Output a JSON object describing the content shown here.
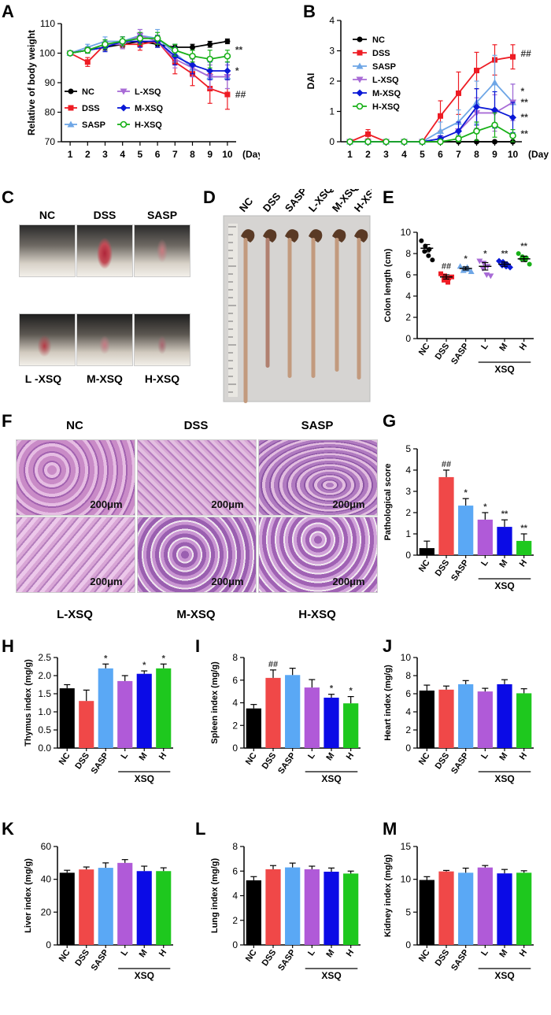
{
  "panels": {
    "A": "A",
    "B": "B",
    "C": "C",
    "D": "D",
    "E": "E",
    "F": "F",
    "G": "G",
    "H": "H",
    "I": "I",
    "J": "J",
    "K": "K",
    "L": "L",
    "M": "M"
  },
  "colors": {
    "NC": "#000000",
    "DSS": "#ee1c24",
    "SASP": "#6ea6e6",
    "L": "#a86bd6",
    "M": "#0a18d6",
    "H": "#17b017",
    "DSS_bar": "#f04848",
    "SASP_bar": "#5aa8f5",
    "L_bar": "#b05ad8",
    "M_bar": "#0b0be6",
    "H_bar": "#1ec81e"
  },
  "photo_c": {
    "labels_top": [
      "NC",
      "DSS",
      "SASP"
    ],
    "labels_bottom": [
      "L -XSQ",
      "M-XSQ",
      "H-XSQ"
    ]
  },
  "photo_d": {
    "labels": [
      "NC",
      "DSS",
      "SASP",
      "L-XSQ",
      "M-XSQ",
      "H-XSQ"
    ]
  },
  "photo_f": {
    "labels_top": [
      "NC",
      "DSS",
      "SASP"
    ],
    "labels_bottom": [
      "L-XSQ",
      "M-XSQ",
      "H-XSQ"
    ],
    "scale": "200μm"
  },
  "chart_data": [
    {
      "id": "A",
      "type": "line",
      "title": "",
      "xlabel": "(Day)",
      "ylabel": "Relative of body weight",
      "x": [
        1,
        2,
        3,
        4,
        5,
        6,
        7,
        8,
        9,
        10
      ],
      "xlim": [
        0.5,
        10.5
      ],
      "ylim": [
        70,
        110
      ],
      "yticks": [
        70,
        80,
        90,
        100,
        110
      ],
      "legend": "inside bottom-left, two columns",
      "series": [
        {
          "name": "NC",
          "marker": "circle",
          "values": [
            100,
            101,
            102,
            103,
            104,
            103,
            102,
            102,
            103,
            104
          ],
          "err": [
            0.5,
            0.8,
            1,
            1,
            1,
            1,
            1,
            1,
            1,
            0.8
          ],
          "sig": ""
        },
        {
          "name": "DSS",
          "marker": "square",
          "values": [
            100,
            97,
            103,
            103,
            103,
            104,
            97,
            93,
            88,
            86
          ],
          "err": [
            0.5,
            1.5,
            1.5,
            1.5,
            2,
            2,
            4,
            4,
            5,
            5
          ],
          "sig": "##"
        },
        {
          "name": "SASP",
          "marker": "triangle-up",
          "values": [
            100,
            102,
            104,
            104,
            106,
            105,
            100,
            95,
            92,
            92
          ],
          "err": [
            0.5,
            1,
            1.5,
            1.5,
            2,
            3,
            3,
            3,
            4,
            4
          ],
          "sig": ""
        },
        {
          "name": "L-XSQ",
          "marker": "triangle-down",
          "values": [
            100,
            101,
            103,
            103,
            106,
            104,
            98,
            95,
            92,
            92
          ],
          "err": [
            0.5,
            1,
            1.5,
            1.5,
            2,
            2,
            3,
            3,
            4,
            4
          ],
          "sig": ""
        },
        {
          "name": "M-XSQ",
          "marker": "diamond",
          "values": [
            100,
            101,
            102,
            104,
            104,
            104,
            99,
            96,
            94,
            94
          ],
          "err": [
            0.5,
            1,
            1.5,
            1.5,
            2,
            2,
            3,
            3,
            3,
            3
          ],
          "sig": "*"
        },
        {
          "name": "H-XSQ",
          "marker": "circle-open",
          "values": [
            100,
            101,
            103,
            104,
            105,
            105,
            101,
            99,
            98,
            99
          ],
          "err": [
            0.5,
            1,
            1.5,
            1.5,
            2,
            2,
            2,
            2,
            3,
            2
          ],
          "sig": "**"
        }
      ]
    },
    {
      "id": "B",
      "type": "line",
      "title": "",
      "xlabel": "(Day",
      "ylabel": "DAI",
      "x": [
        1,
        2,
        3,
        4,
        5,
        6,
        7,
        8,
        9,
        10
      ],
      "xlim": [
        0.5,
        10.5
      ],
      "ylim": [
        0,
        4
      ],
      "yticks": [
        0,
        1,
        2,
        3,
        4
      ],
      "legend": "top-left",
      "series": [
        {
          "name": "NC",
          "marker": "circle",
          "values": [
            0,
            0,
            0,
            0,
            0,
            0,
            0,
            0,
            0,
            0
          ],
          "err": [
            0,
            0,
            0,
            0,
            0,
            0,
            0,
            0,
            0,
            0
          ],
          "sig": ""
        },
        {
          "name": "DSS",
          "marker": "square",
          "values": [
            0,
            0.25,
            0,
            0,
            0,
            0.85,
            1.6,
            2.35,
            2.7,
            2.8
          ],
          "err": [
            0,
            0.15,
            0,
            0,
            0,
            0.5,
            0.7,
            0.6,
            0.5,
            0.4
          ],
          "sig": "##"
        },
        {
          "name": "SASP",
          "marker": "triangle-up",
          "values": [
            0,
            0,
            0,
            0,
            0,
            0.35,
            0.65,
            1.3,
            1.95,
            1.3
          ],
          "err": [
            0,
            0,
            0,
            0,
            0,
            0.3,
            0.4,
            0.7,
            0.9,
            0.6
          ],
          "sig": "*"
        },
        {
          "name": "L-XSQ",
          "marker": "triangle-down",
          "values": [
            0,
            0,
            0,
            0,
            0,
            0.1,
            0.35,
            0.95,
            0.95,
            1.3
          ],
          "err": [
            0,
            0,
            0,
            0,
            0,
            0.1,
            0.3,
            0.5,
            0.6,
            0.6
          ],
          "sig": "**"
        },
        {
          "name": "M-XSQ",
          "marker": "diamond",
          "values": [
            0,
            0,
            0,
            0,
            0,
            0.1,
            0.35,
            1.15,
            1.05,
            0.8
          ],
          "err": [
            0,
            0,
            0,
            0,
            0,
            0.1,
            0.3,
            0.6,
            0.6,
            0.5
          ],
          "sig": "**"
        },
        {
          "name": "H-XSQ",
          "marker": "circle-open",
          "values": [
            0,
            0,
            0,
            0,
            0,
            0,
            0.1,
            0.35,
            0.55,
            0.2
          ],
          "err": [
            0,
            0,
            0,
            0,
            0,
            0,
            0.1,
            0.3,
            0.4,
            0.2
          ],
          "sig": "**"
        }
      ]
    },
    {
      "id": "E",
      "type": "scatter",
      "title": "",
      "ylabel": "Colon length (cm)",
      "ylim": [
        0,
        10
      ],
      "yticks": [
        0,
        2,
        4,
        6,
        8,
        10
      ],
      "categories": [
        "NC",
        "DSS",
        "SASP",
        "L",
        "M",
        "H"
      ],
      "group_label": "XSQ",
      "groups": [
        {
          "name": "NC",
          "marker": "circle",
          "points": [
            9.2,
            8.7,
            8.4,
            8.2,
            7.8,
            7.4
          ],
          "mean": 8.5,
          "sem": 0.35,
          "sig": ""
        },
        {
          "name": "DSS",
          "marker": "square",
          "points": [
            6.1,
            5.9,
            5.7,
            5.5,
            5.3,
            5.8
          ],
          "mean": 5.8,
          "sem": 0.2,
          "sig": "##"
        },
        {
          "name": "SASP",
          "marker": "triangle-up",
          "points": [
            6.8,
            6.6,
            6.5,
            6.4,
            6.7,
            6.3
          ],
          "mean": 6.6,
          "sem": 0.15,
          "sig": "*"
        },
        {
          "name": "L",
          "marker": "triangle-down",
          "points": [
            7.3,
            7.1,
            6.8,
            6.6,
            6.0,
            5.9
          ],
          "mean": 6.8,
          "sem": 0.35,
          "sig": "*"
        },
        {
          "name": "M",
          "marker": "diamond",
          "points": [
            7.3,
            7.2,
            7.0,
            6.9,
            6.8,
            6.7
          ],
          "mean": 7.0,
          "sem": 0.2,
          "sig": "**"
        },
        {
          "name": "H",
          "marker": "circle",
          "points": [
            8.0,
            7.7,
            7.6,
            7.5,
            7.4,
            7.0
          ],
          "mean": 7.5,
          "sem": 0.25,
          "sig": "**"
        }
      ]
    },
    {
      "id": "G",
      "type": "bar",
      "ylabel": "Pathological score",
      "ylim": [
        0,
        5
      ],
      "yticks": [
        0,
        1,
        2,
        3,
        4,
        5
      ],
      "categories": [
        "NC",
        "DSS",
        "SASP",
        "L",
        "M",
        "H"
      ],
      "group_label": "XSQ",
      "values": [
        0.33,
        3.67,
        2.33,
        1.67,
        1.33,
        0.67
      ],
      "err": [
        0.33,
        0.33,
        0.33,
        0.33,
        0.33,
        0.33
      ],
      "sig": [
        "",
        "##",
        "*",
        "*",
        "**",
        "**"
      ]
    },
    {
      "id": "H",
      "type": "bar",
      "ylabel": "Thymus index (mg/g)",
      "ylim": [
        0,
        2.5
      ],
      "yticks": [
        0,
        0.5,
        1.0,
        1.5,
        2.0,
        2.5
      ],
      "ytick_labels": [
        "0.0",
        "0.5",
        "1.0",
        "1.5",
        "2.0",
        "2.5"
      ],
      "categories": [
        "NC",
        "DSS",
        "SASP",
        "L",
        "M",
        "H"
      ],
      "group_label": "XSQ",
      "values": [
        1.65,
        1.3,
        2.2,
        1.85,
        2.05,
        2.2
      ],
      "err": [
        0.1,
        0.3,
        0.12,
        0.15,
        0.08,
        0.12
      ],
      "sig": [
        "",
        "",
        "*",
        "",
        "*",
        "*"
      ]
    },
    {
      "id": "I",
      "type": "bar",
      "ylabel": "Spleen index (mg/g)",
      "ylim": [
        0,
        8
      ],
      "yticks": [
        0,
        2,
        4,
        6,
        8
      ],
      "categories": [
        "NC",
        "DSS",
        "SASP",
        "L",
        "M",
        "H"
      ],
      "group_label": "XSQ",
      "values": [
        3.5,
        6.2,
        6.45,
        5.35,
        4.45,
        3.95
      ],
      "err": [
        0.35,
        0.7,
        0.6,
        0.7,
        0.3,
        0.6
      ],
      "sig": [
        "",
        "##",
        "",
        "",
        "*",
        "*"
      ]
    },
    {
      "id": "J",
      "type": "bar",
      "ylabel": "Heart index (mg/g)",
      "ylim": [
        0,
        10
      ],
      "yticks": [
        0,
        2,
        4,
        6,
        8,
        10
      ],
      "categories": [
        "NC",
        "DSS",
        "SASP",
        "L",
        "M",
        "H"
      ],
      "group_label": "XSQ",
      "values": [
        6.35,
        6.45,
        7.05,
        6.25,
        7.05,
        6.05
      ],
      "err": [
        0.6,
        0.4,
        0.4,
        0.35,
        0.5,
        0.5
      ],
      "sig": [
        "",
        "",
        "",
        "",
        "",
        ""
      ]
    },
    {
      "id": "K",
      "type": "bar",
      "ylabel": "Liver index (mg/g)",
      "ylim": [
        0,
        60
      ],
      "yticks": [
        0,
        20,
        40,
        60
      ],
      "categories": [
        "NC",
        "DSS",
        "SASP",
        "L",
        "M",
        "H"
      ],
      "group_label": "XSQ",
      "values": [
        44,
        46,
        47,
        50,
        45,
        45
      ],
      "err": [
        1.5,
        1.5,
        3,
        2,
        3,
        2
      ],
      "sig": [
        "",
        "",
        "",
        "",
        "",
        ""
      ]
    },
    {
      "id": "L",
      "type": "bar",
      "ylabel": "Lung index (mg/g)",
      "ylim": [
        0,
        8
      ],
      "yticks": [
        0,
        2,
        4,
        6,
        8
      ],
      "categories": [
        "NC",
        "DSS",
        "SASP",
        "L",
        "M",
        "H"
      ],
      "group_label": "XSQ",
      "values": [
        5.25,
        6.15,
        6.3,
        6.15,
        5.95,
        5.8
      ],
      "err": [
        0.3,
        0.3,
        0.35,
        0.25,
        0.3,
        0.2
      ],
      "sig": [
        "",
        "",
        "",
        "",
        "",
        ""
      ]
    },
    {
      "id": "M",
      "type": "bar",
      "ylabel": "Kidney index (mg/g)",
      "ylim": [
        0,
        15
      ],
      "yticks": [
        0,
        5,
        10,
        15
      ],
      "categories": [
        "NC",
        "DSS",
        "SASP",
        "L",
        "M",
        "H"
      ],
      "group_label": "XSQ",
      "values": [
        9.9,
        11.2,
        11.0,
        11.8,
        10.9,
        11.0
      ],
      "err": [
        0.5,
        0.15,
        0.7,
        0.3,
        0.6,
        0.3
      ],
      "sig": [
        "",
        "",
        "",
        "",
        "",
        ""
      ]
    }
  ]
}
